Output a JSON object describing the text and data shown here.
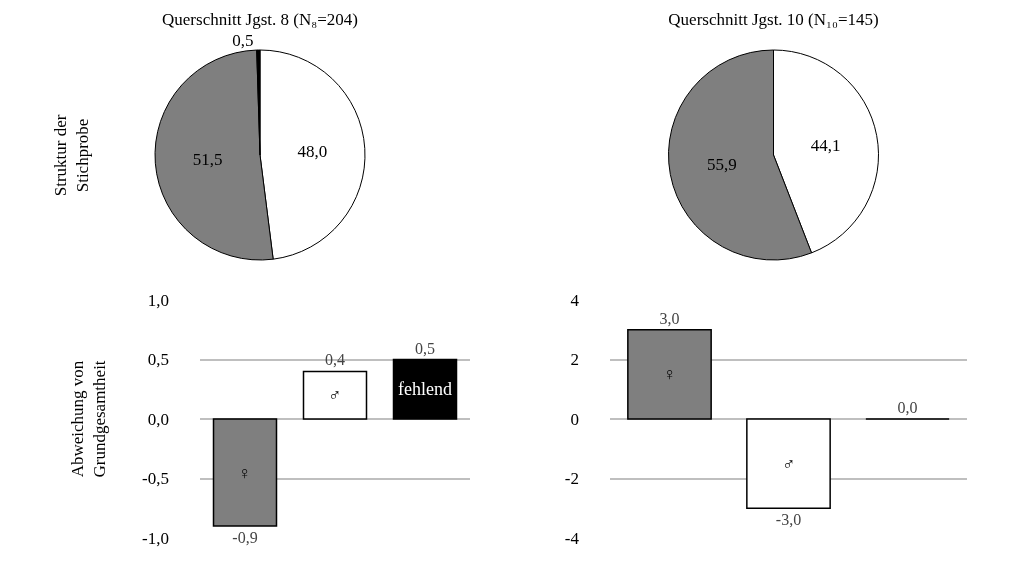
{
  "chart_data": [
    {
      "type": "pie",
      "title": "Querschnitt Jgst. 8 (N₈=204)",
      "ylabel": "Struktur der Stichprobe",
      "categories": [
        null,
        null,
        null
      ],
      "values": [
        48.0,
        51.5,
        0.5
      ],
      "colors": [
        "#ffffff",
        "#7f7f7f",
        "#000000"
      ],
      "value_labels": [
        "48,0",
        "51,5",
        "0,5"
      ],
      "legend": false
    },
    {
      "type": "pie",
      "title": "Querschnitt Jgst. 10 (N₁₀=145)",
      "categories": [
        null,
        null
      ],
      "values": [
        44.1,
        55.9
      ],
      "colors": [
        "#ffffff",
        "#7f7f7f"
      ],
      "value_labels": [
        "44,1",
        "55,9"
      ],
      "legend": false
    },
    {
      "type": "bar",
      "ylabel": "Abweichung von Grundgesamtheit",
      "categories": [
        null,
        null,
        null
      ],
      "values": [
        -0.9,
        0.4,
        0.5
      ],
      "colors": [
        "#7f7f7f",
        "#ffffff",
        "#000000"
      ],
      "value_labels": [
        "-0,9",
        "0,4",
        "0,5"
      ],
      "ylim": [
        -1.0,
        1.0
      ],
      "yticks": [
        {
          "value": -1.0,
          "label": "-1,0"
        },
        {
          "value": -0.5,
          "label": "-0,5"
        },
        {
          "value": 0,
          "label": "0,0"
        },
        {
          "value": 0.5,
          "label": "0,5"
        },
        {
          "value": 1.0,
          "label": "1,0"
        }
      ],
      "grid": "y",
      "legend": false,
      "annotations": [
        "♀",
        "♂",
        "fehlend"
      ]
    },
    {
      "type": "bar",
      "categories": [
        null,
        null,
        null
      ],
      "values": [
        3.0,
        -3.0,
        0.0
      ],
      "colors": [
        "#7f7f7f",
        "#ffffff",
        "#000000"
      ],
      "value_labels": [
        "3,0",
        "-3,0",
        "0,0"
      ],
      "ylim": [
        -4,
        4
      ],
      "yticks": [
        -4,
        -2,
        0,
        2,
        4
      ],
      "grid": "y",
      "legend": false,
      "annotations": [
        "♀",
        "♂"
      ]
    }
  ]
}
